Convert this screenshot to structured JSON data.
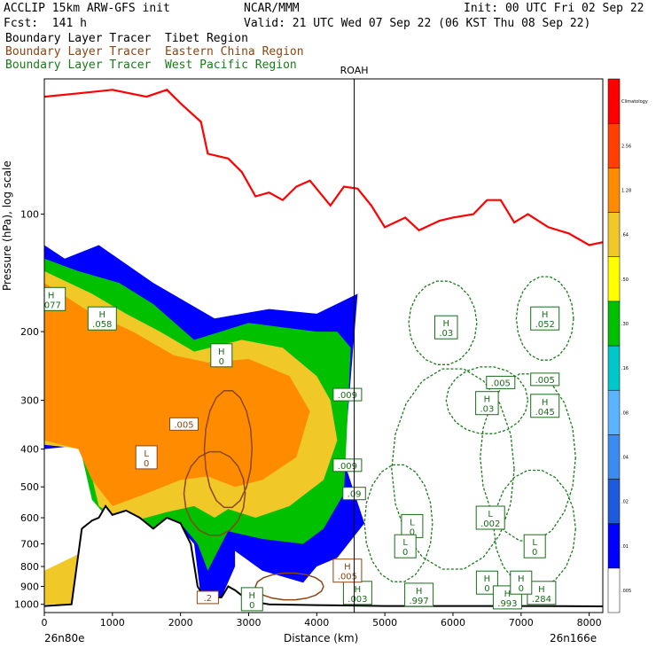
{
  "header": {
    "model": "ACCLIP 15km ARW-GFS init",
    "org": "NCAR/MMM",
    "init": "Init: 00 UTC Fri 02 Sep 22",
    "fcst": "Fcst:  141 h",
    "valid": "Valid: 21 UTC Wed 07 Sep 22 (06 KST Thu 08 Sep 22)",
    "tracers": [
      {
        "label": "Boundary Layer Tracer  Tibet Region",
        "color": "#000000"
      },
      {
        "label": "Boundary Layer Tracer  Eastern China Region",
        "color": "#8b4513"
      },
      {
        "label": "Boundary Layer Tracer  West Pacific Region",
        "color": "#1a7a1a"
      }
    ]
  },
  "chart_data": {
    "type": "heatmap",
    "xlabel": "Distance (km)",
    "ylabel": "Pressure (hPa), log scale",
    "xlim": [
      0,
      8200
    ],
    "ylim": [
      1050,
      45
    ],
    "y_scale": "log",
    "x_ticks": [
      {
        "value": 0,
        "label": "0"
      },
      {
        "value": 1000,
        "label": "1000"
      },
      {
        "value": 2000,
        "label": "2000"
      },
      {
        "value": 3000,
        "label": "3000"
      },
      {
        "value": 4000,
        "label": "4000"
      },
      {
        "value": 5000,
        "label": "5000"
      },
      {
        "value": 6000,
        "label": "6000"
      },
      {
        "value": 7000,
        "label": "7000"
      },
      {
        "value": 8000,
        "label": "8000"
      }
    ],
    "y_ticks": [
      {
        "value": 100,
        "label": "100"
      },
      {
        "value": 200,
        "label": "200"
      },
      {
        "value": 300,
        "label": "300"
      },
      {
        "value": 400,
        "label": "400"
      },
      {
        "value": 500,
        "label": "500"
      },
      {
        "value": 600,
        "label": "600"
      },
      {
        "value": 700,
        "label": "700"
      },
      {
        "value": 800,
        "label": "800"
      },
      {
        "value": 900,
        "label": "900"
      },
      {
        "value": 1000,
        "label": "1000"
      }
    ],
    "left_end_label": "26n80e",
    "right_end_label": "26n166e",
    "station": {
      "name": "ROAH",
      "x": 4550
    },
    "colorbar": [
      {
        "label": ".005",
        "color": "#ffffff"
      },
      {
        "label": ".01",
        "color": "#0000ff"
      },
      {
        "label": ".02",
        "color": "#1e5adc"
      },
      {
        "label": ".04",
        "color": "#3c8cf0"
      },
      {
        "label": ".08",
        "color": "#5ab4ff"
      },
      {
        "label": ".16",
        "color": "#00c8c8"
      },
      {
        "label": ".30",
        "color": "#00c000"
      },
      {
        "label": ".50",
        "color": "#ffff00"
      },
      {
        "label": ".64",
        "color": "#f0c828"
      },
      {
        "label": "1.28",
        "color": "#ff8c00"
      },
      {
        "label": "2.56",
        "color": "#ff4000"
      },
      {
        "label": "Climatology",
        "color": "#ff0000"
      }
    ],
    "tropopause": [
      [
        0,
        50
      ],
      [
        500,
        49
      ],
      [
        1000,
        48
      ],
      [
        1500,
        50
      ],
      [
        1800,
        48
      ],
      [
        2000,
        52
      ],
      [
        2300,
        58
      ],
      [
        2400,
        70
      ],
      [
        2700,
        72
      ],
      [
        2900,
        78
      ],
      [
        3100,
        90
      ],
      [
        3300,
        88
      ],
      [
        3500,
        92
      ],
      [
        3700,
        85
      ],
      [
        3900,
        82
      ],
      [
        4200,
        95
      ],
      [
        4400,
        85
      ],
      [
        4600,
        86
      ],
      [
        4800,
        95
      ],
      [
        5000,
        108
      ],
      [
        5300,
        102
      ],
      [
        5500,
        110
      ],
      [
        5800,
        104
      ],
      [
        6000,
        102
      ],
      [
        6300,
        100
      ],
      [
        6500,
        92
      ],
      [
        6700,
        92
      ],
      [
        6900,
        105
      ],
      [
        7100,
        100
      ],
      [
        7400,
        108
      ],
      [
        7700,
        112
      ],
      [
        8000,
        120
      ],
      [
        8200,
        118
      ]
    ],
    "terrain": [
      [
        0,
        1010
      ],
      [
        400,
        1000
      ],
      [
        550,
        640
      ],
      [
        700,
        610
      ],
      [
        800,
        600
      ],
      [
        900,
        560
      ],
      [
        1000,
        590
      ],
      [
        1200,
        575
      ],
      [
        1400,
        600
      ],
      [
        1600,
        640
      ],
      [
        1800,
        600
      ],
      [
        2000,
        620
      ],
      [
        2150,
        700
      ],
      [
        2250,
        900
      ],
      [
        2350,
        960
      ],
      [
        2600,
        960
      ],
      [
        2700,
        900
      ],
      [
        2800,
        920
      ],
      [
        3000,
        980
      ],
      [
        3300,
        1000
      ],
      [
        4000,
        1005
      ],
      [
        5000,
        1010
      ],
      [
        6000,
        1010
      ],
      [
        7000,
        1010
      ],
      [
        8200,
        1012
      ]
    ],
    "shading": [
      {
        "level": ".01",
        "polygon": [
          [
            0,
            120
          ],
          [
            300,
            130
          ],
          [
            800,
            120
          ],
          [
            1600,
            150
          ],
          [
            2500,
            185
          ],
          [
            3300,
            175
          ],
          [
            4000,
            180
          ],
          [
            4600,
            160
          ],
          [
            4400,
            430
          ],
          [
            4700,
            620
          ],
          [
            4300,
            760
          ],
          [
            4000,
            800
          ],
          [
            3800,
            880
          ],
          [
            3200,
            820
          ],
          [
            2800,
            730
          ],
          [
            2800,
            800
          ],
          [
            2600,
            960
          ],
          [
            2300,
            960
          ],
          [
            2200,
            700
          ],
          [
            2000,
            640
          ],
          [
            1400,
            700
          ],
          [
            1000,
            620
          ],
          [
            800,
            560
          ],
          [
            600,
            390
          ],
          [
            0,
            400
          ]
        ]
      },
      {
        "level": ".30",
        "polygon": [
          [
            0,
            130
          ],
          [
            500,
            140
          ],
          [
            1100,
            150
          ],
          [
            1600,
            170
          ],
          [
            2200,
            210
          ],
          [
            3000,
            190
          ],
          [
            3500,
            195
          ],
          [
            4000,
            200
          ],
          [
            4300,
            200
          ],
          [
            4500,
            220
          ],
          [
            4400,
            520
          ],
          [
            4100,
            640
          ],
          [
            3800,
            700
          ],
          [
            3200,
            680
          ],
          [
            2700,
            650
          ],
          [
            2600,
            700
          ],
          [
            2400,
            820
          ],
          [
            2250,
            700
          ],
          [
            2000,
            620
          ],
          [
            1500,
            700
          ],
          [
            1000,
            620
          ],
          [
            700,
            540
          ],
          [
            500,
            380
          ],
          [
            0,
            370
          ]
        ]
      },
      {
        "level": ".64",
        "polygon": [
          [
            0,
            140
          ],
          [
            700,
            160
          ],
          [
            1200,
            180
          ],
          [
            1700,
            200
          ],
          [
            2200,
            225
          ],
          [
            2900,
            210
          ],
          [
            3500,
            220
          ],
          [
            4000,
            260
          ],
          [
            4200,
            300
          ],
          [
            4300,
            380
          ],
          [
            4100,
            480
          ],
          [
            3600,
            560
          ],
          [
            3100,
            600
          ],
          [
            2700,
            570
          ],
          [
            2500,
            600
          ],
          [
            2200,
            560
          ],
          [
            1800,
            580
          ],
          [
            1200,
            620
          ],
          [
            800,
            560
          ],
          [
            600,
            400
          ],
          [
            0,
            390
          ]
        ]
      },
      {
        "level": "1.28",
        "polygon": [
          [
            0,
            150
          ],
          [
            600,
            175
          ],
          [
            1300,
            200
          ],
          [
            1900,
            230
          ],
          [
            2400,
            240
          ],
          [
            3000,
            235
          ],
          [
            3600,
            260
          ],
          [
            3900,
            320
          ],
          [
            3700,
            420
          ],
          [
            3200,
            480
          ],
          [
            2800,
            500
          ],
          [
            2400,
            470
          ],
          [
            2000,
            480
          ],
          [
            1500,
            520
          ],
          [
            1000,
            560
          ],
          [
            700,
            480
          ],
          [
            500,
            400
          ],
          [
            0,
            380
          ]
        ]
      },
      {
        "level": ".64",
        "polygon": [
          [
            600,
            730
          ],
          [
            700,
            1000
          ],
          [
            0,
            1000
          ],
          [
            0,
            820
          ]
        ]
      }
    ],
    "h_l_labels": [
      {
        "kind": "H",
        "x": 100,
        "p": 165,
        "value": ".077",
        "color": "green"
      },
      {
        "kind": "H",
        "x": 850,
        "p": 185,
        "value": ".058",
        "color": "green"
      },
      {
        "kind": "H",
        "x": 2600,
        "p": 230,
        "value": "0",
        "color": "green"
      },
      {
        "kind": "",
        "x": 2050,
        "p": 345,
        "value": ".005",
        "color": "brown"
      },
      {
        "kind": "L",
        "x": 1500,
        "p": 420,
        "value": "0",
        "color": "brown"
      },
      {
        "kind": "H",
        "x": 5900,
        "p": 195,
        "value": ".03",
        "color": "green"
      },
      {
        "kind": "H",
        "x": 7350,
        "p": 185,
        "value": ".052",
        "color": "green"
      },
      {
        "kind": "",
        "x": 6700,
        "p": 270,
        "value": ".005",
        "color": "green"
      },
      {
        "kind": "",
        "x": 7350,
        "p": 265,
        "value": ".005",
        "color": "green"
      },
      {
        "kind": "H",
        "x": 7350,
        "p": 310,
        "value": ".045",
        "color": "green"
      },
      {
        "kind": "H",
        "x": 6500,
        "p": 305,
        "value": ".03",
        "color": "green"
      },
      {
        "kind": "",
        "x": 4450,
        "p": 290,
        "value": ".009",
        "color": "green"
      },
      {
        "kind": "",
        "x": 4450,
        "p": 440,
        "value": ".009",
        "color": "green"
      },
      {
        "kind": "",
        "x": 4550,
        "p": 520,
        "value": ".09",
        "color": "green"
      },
      {
        "kind": "L",
        "x": 5400,
        "p": 630,
        "value": "0",
        "color": "green"
      },
      {
        "kind": "L",
        "x": 6550,
        "p": 600,
        "value": ".002",
        "color": "green"
      },
      {
        "kind": "L",
        "x": 5300,
        "p": 710,
        "value": "0",
        "color": "green"
      },
      {
        "kind": "L",
        "x": 7200,
        "p": 710,
        "value": "0",
        "color": "green"
      },
      {
        "kind": "H",
        "x": 4600,
        "p": 935,
        "value": ".003",
        "color": "green"
      },
      {
        "kind": "H",
        "x": 4450,
        "p": 820,
        "value": ".005",
        "color": "brown"
      },
      {
        "kind": "H",
        "x": 5500,
        "p": 945,
        "value": ".997",
        "color": "green"
      },
      {
        "kind": "H",
        "x": 6500,
        "p": 880,
        "value": "0",
        "color": "green"
      },
      {
        "kind": "H",
        "x": 6800,
        "p": 960,
        "value": ".993",
        "color": "green"
      },
      {
        "kind": "H",
        "x": 7300,
        "p": 935,
        "value": ".284",
        "color": "green"
      },
      {
        "kind": "H",
        "x": 7000,
        "p": 880,
        "value": "0",
        "color": "green"
      },
      {
        "kind": "H",
        "x": 3050,
        "p": 970,
        "value": "0",
        "color": "green"
      },
      {
        "kind": "",
        "x": 2400,
        "p": 960,
        "value": ".2",
        "color": "brown"
      }
    ]
  }
}
